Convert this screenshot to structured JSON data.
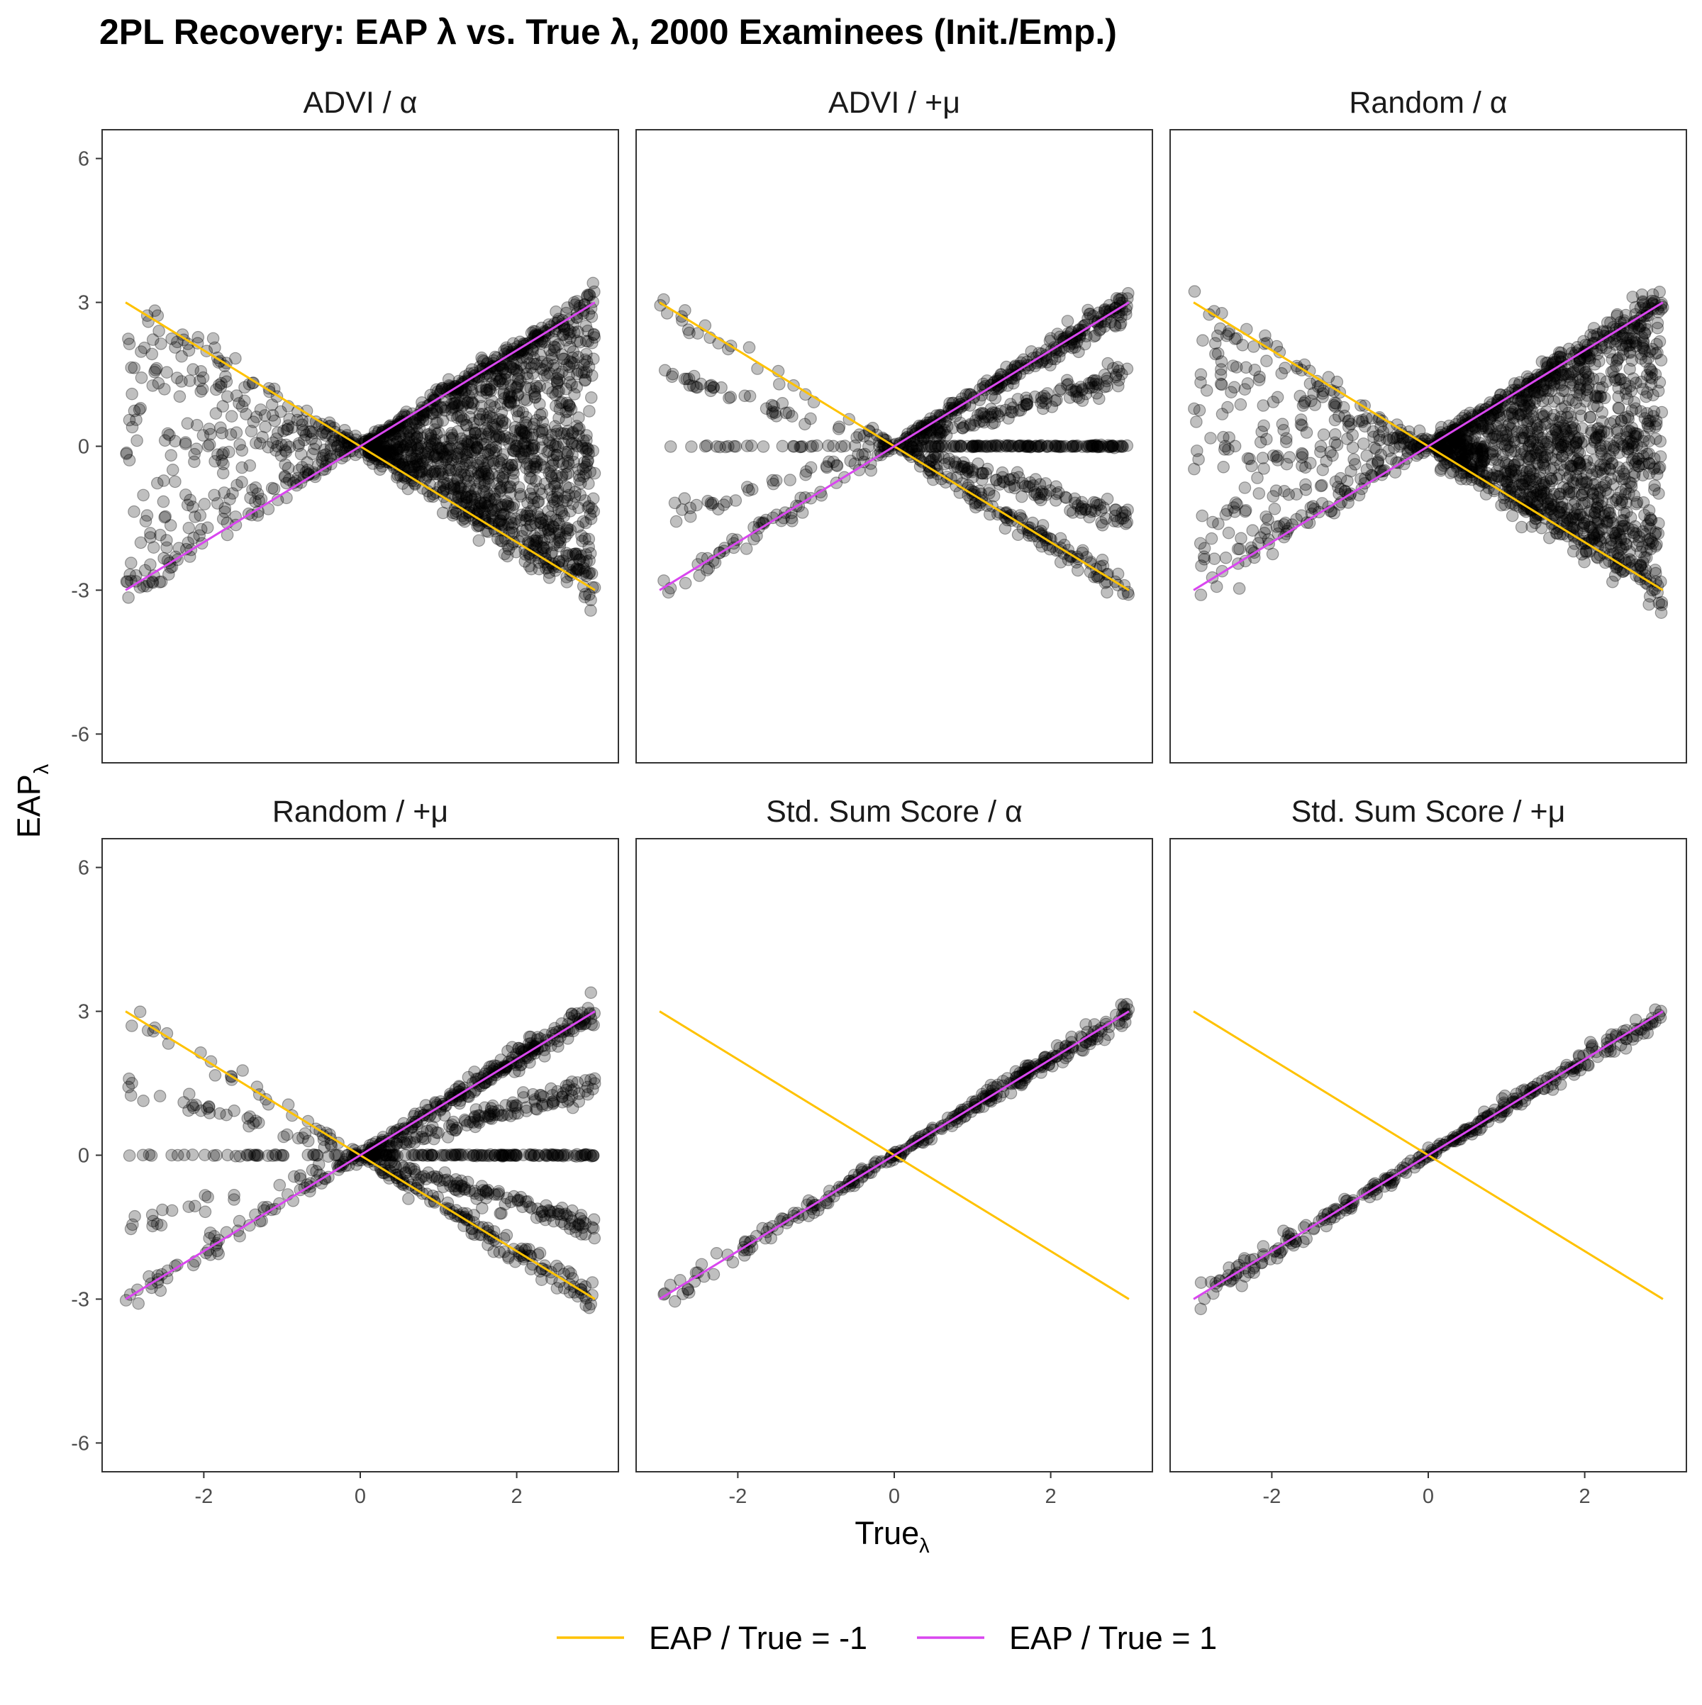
{
  "chart_data": {
    "type": "scatter",
    "title": "2PL Recovery: EAP λ vs. True λ, 2000 Examinees (Init./Emp.)",
    "xlabel": "True",
    "xlabel_subscript": "λ",
    "ylabel": "EAP",
    "ylabel_subscript": "λ",
    "xlim": [
      -3.3,
      3.3
    ],
    "ylim": [
      -6.6,
      6.6
    ],
    "x_ticks": [
      -2,
      0,
      2
    ],
    "y_ticks": [
      -6,
      -3,
      0,
      3,
      6
    ],
    "grid": false,
    "legend_position": "bottom",
    "reference_lines": [
      {
        "label": "EAP / True = -1",
        "slope": -1,
        "color": "#FFC200"
      },
      {
        "label": "EAP / True = 1",
        "slope": 1,
        "color": "#D946EF"
      }
    ],
    "point_color": "#000000",
    "point_opacity": 0.25,
    "panels": [
      {
        "title": "ADVI / α",
        "slopes": [
          1.0,
          -1.0,
          0.55,
          -0.45,
          0.0,
          0.2,
          -0.2,
          -0.7,
          -0.85,
          0.8
        ],
        "band_widths": [
          0.16,
          0.2,
          0.22,
          0.3,
          0.25,
          0.28,
          0.28,
          0.3,
          0.3,
          0.18
        ]
      },
      {
        "title": "ADVI / +μ",
        "slopes": [
          1.0,
          -1.0,
          0.5,
          -0.5,
          0.0
        ],
        "band_widths": [
          0.15,
          0.15,
          0.12,
          0.12,
          0.01
        ]
      },
      {
        "title": "Random / α",
        "slopes": [
          1.0,
          -1.0,
          0.55,
          -0.5,
          0.0,
          0.2,
          -0.2,
          -0.7,
          -0.85,
          0.8
        ],
        "band_widths": [
          0.16,
          0.2,
          0.22,
          0.3,
          0.25,
          0.28,
          0.28,
          0.3,
          0.3,
          0.18
        ]
      },
      {
        "title": "Random / +μ",
        "slopes": [
          1.0,
          -1.0,
          0.5,
          -0.5,
          0.0
        ],
        "band_widths": [
          0.15,
          0.15,
          0.12,
          0.12,
          0.01
        ]
      },
      {
        "title": "Std. Sum Score / α",
        "slopes": [
          1.0
        ],
        "band_widths": [
          0.12
        ]
      },
      {
        "title": "Std. Sum Score / +μ",
        "slopes": [
          1.0
        ],
        "band_widths": [
          0.12
        ]
      }
    ]
  }
}
